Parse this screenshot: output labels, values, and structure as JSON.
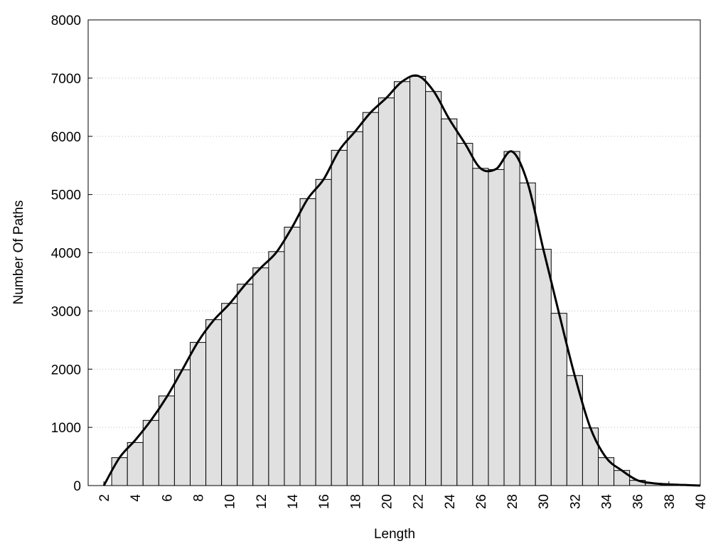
{
  "chart_data": {
    "type": "histogram",
    "x_label": "Length",
    "y_label": "Number Of Paths",
    "bins": [
      2.5,
      3.5,
      4.5,
      5.5,
      6.5,
      7.5,
      8.5,
      9.5,
      10.5,
      11.5,
      12.5,
      13.5,
      14.5,
      15.5,
      16.5,
      17.5,
      18.5,
      19.5,
      20.5,
      21.5,
      22.5,
      23.5,
      24.5,
      25.5,
      26.5,
      27.5,
      28.5,
      29.5,
      30.5,
      31.5,
      32.5,
      33.5,
      34.5,
      35.5,
      36.5,
      37.5,
      38.5,
      39.5
    ],
    "counts": [
      480,
      740,
      1120,
      1540,
      1990,
      2460,
      2850,
      3130,
      3460,
      3740,
      4020,
      4440,
      4930,
      5260,
      5760,
      6080,
      6410,
      6660,
      6940,
      7030,
      6770,
      6300,
      5880,
      5450,
      5430,
      5740,
      5200,
      4060,
      2960,
      1890,
      990,
      480,
      260,
      90,
      40,
      20,
      10
    ],
    "color": "#e0e0e0",
    "line": {
      "color": "#000000",
      "x": [
        2,
        3,
        4,
        5,
        6,
        7,
        8,
        9,
        10,
        11,
        12,
        13,
        14,
        15,
        16,
        17,
        18,
        19,
        20,
        21,
        22,
        23,
        24,
        25,
        26,
        27,
        28,
        29,
        30,
        31,
        32,
        33,
        34,
        35,
        36,
        37,
        38,
        39,
        40
      ],
      "values": [
        0,
        480,
        780,
        1120,
        1520,
        1990,
        2470,
        2840,
        3120,
        3450,
        3740,
        4010,
        4440,
        4930,
        5260,
        5760,
        6080,
        6410,
        6660,
        6940,
        7040,
        6780,
        6300,
        5880,
        5450,
        5440,
        5740,
        5200,
        4060,
        2960,
        1890,
        990,
        480,
        260,
        90,
        40,
        20,
        10,
        0
      ]
    },
    "xlim": [
      1,
      40
    ],
    "ylim": [
      0,
      8000
    ],
    "xticks": [
      2,
      4,
      6,
      8,
      10,
      12,
      14,
      16,
      18,
      20,
      22,
      24,
      26,
      28,
      30,
      32,
      34,
      36,
      38,
      40
    ],
    "yticks": [
      0,
      1000,
      2000,
      3000,
      4000,
      5000,
      6000,
      7000,
      8000
    ],
    "grid": true
  }
}
